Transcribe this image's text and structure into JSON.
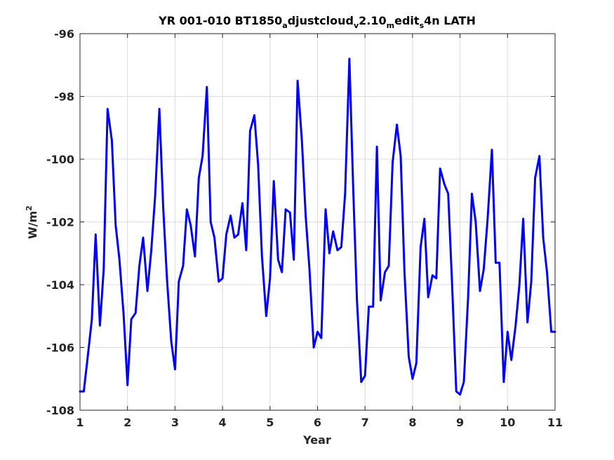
{
  "chart_data": {
    "type": "line",
    "title": "YR 001-010 BT1850",
    "title_parts": [
      {
        "text": "YR 001-010 BT1850",
        "sub": false
      },
      {
        "text": "a",
        "sub": true
      },
      {
        "text": "djustcloud",
        "sub": false
      },
      {
        "text": "v",
        "sub": true
      },
      {
        "text": "2.10",
        "sub": false
      },
      {
        "text": "m",
        "sub": true
      },
      {
        "text": "edit",
        "sub": false
      },
      {
        "text": "s",
        "sub": true
      },
      {
        "text": "4n LATH",
        "sub": false
      }
    ],
    "xlabel": "Year",
    "ylabel": "W/m",
    "ylabel_sup": "2",
    "xlim": [
      1,
      11
    ],
    "ylim": [
      -108,
      -96
    ],
    "xticks": [
      1,
      2,
      3,
      4,
      5,
      6,
      7,
      8,
      9,
      10,
      11
    ],
    "yticks": [
      -108,
      -106,
      -104,
      -102,
      -100,
      -98,
      -96
    ],
    "grid": true,
    "series": [
      {
        "color": "#0000ff",
        "x": [
          1.0,
          1.08,
          1.17,
          1.25,
          1.33,
          1.42,
          1.5,
          1.58,
          1.67,
          1.75,
          1.83,
          1.92,
          2.0,
          2.08,
          2.17,
          2.25,
          2.33,
          2.42,
          2.5,
          2.58,
          2.67,
          2.75,
          2.83,
          2.92,
          3.0,
          3.08,
          3.17,
          3.25,
          3.33,
          3.42,
          3.5,
          3.58,
          3.67,
          3.75,
          3.83,
          3.92,
          4.0,
          4.08,
          4.17,
          4.25,
          4.33,
          4.42,
          4.5,
          4.58,
          4.67,
          4.75,
          4.83,
          4.92,
          5.0,
          5.08,
          5.17,
          5.25,
          5.33,
          5.42,
          5.5,
          5.58,
          5.67,
          5.75,
          5.83,
          5.92,
          6.0,
          6.08,
          6.17,
          6.25,
          6.33,
          6.42,
          6.5,
          6.58,
          6.67,
          6.75,
          6.83,
          6.92,
          7.0,
          7.08,
          7.17,
          7.25,
          7.33,
          7.42,
          7.5,
          7.58,
          7.67,
          7.75,
          7.83,
          7.92,
          8.0,
          8.08,
          8.17,
          8.25,
          8.33,
          8.42,
          8.5,
          8.58,
          8.67,
          8.75,
          8.83,
          8.92,
          9.0,
          9.08,
          9.17,
          9.25,
          9.33,
          9.42,
          9.5,
          9.58,
          9.67,
          9.75,
          9.83,
          9.92,
          10.0,
          10.08,
          10.17,
          10.25,
          10.33,
          10.42,
          10.5,
          10.58,
          10.67,
          10.75,
          10.83,
          10.92,
          11.0
        ],
        "y": [
          -107.4,
          -107.4,
          -106.2,
          -105.1,
          -102.4,
          -105.3,
          -103.5,
          -98.4,
          -99.4,
          -102.1,
          -103.2,
          -105.0,
          -107.2,
          -105.1,
          -104.9,
          -103.4,
          -102.5,
          -104.2,
          -102.9,
          -101.2,
          -98.4,
          -101.5,
          -103.8,
          -105.8,
          -106.7,
          -103.9,
          -103.4,
          -101.6,
          -102.1,
          -103.1,
          -100.6,
          -99.9,
          -97.7,
          -102.0,
          -102.5,
          -103.9,
          -103.8,
          -102.4,
          -101.8,
          -102.5,
          -102.4,
          -101.4,
          -102.9,
          -99.1,
          -98.6,
          -100.2,
          -103.1,
          -105.0,
          -103.8,
          -100.7,
          -103.2,
          -103.6,
          -101.6,
          -101.7,
          -103.2,
          -97.5,
          -99.4,
          -101.8,
          -103.5,
          -106.0,
          -105.5,
          -105.7,
          -101.6,
          -103.0,
          -102.3,
          -102.9,
          -102.8,
          -101.1,
          -96.8,
          -100.9,
          -104.5,
          -107.1,
          -106.9,
          -104.7,
          -104.7,
          -99.6,
          -104.5,
          -103.6,
          -103.4,
          -100.1,
          -98.9,
          -99.9,
          -103.6,
          -106.3,
          -107.0,
          -106.5,
          -102.8,
          -101.9,
          -104.4,
          -103.7,
          -103.8,
          -100.3,
          -100.8,
          -101.1,
          -103.9,
          -107.4,
          -107.5,
          -107.1,
          -104.4,
          -101.1,
          -102.0,
          -104.2,
          -103.5,
          -101.9,
          -99.7,
          -103.3,
          -103.3,
          -107.1,
          -105.5,
          -106.4,
          -105.3,
          -104.0,
          -101.9,
          -105.2,
          -103.9,
          -100.6,
          -99.9,
          -102.5,
          -103.6,
          -105.5,
          -105.5
        ]
      }
    ]
  }
}
